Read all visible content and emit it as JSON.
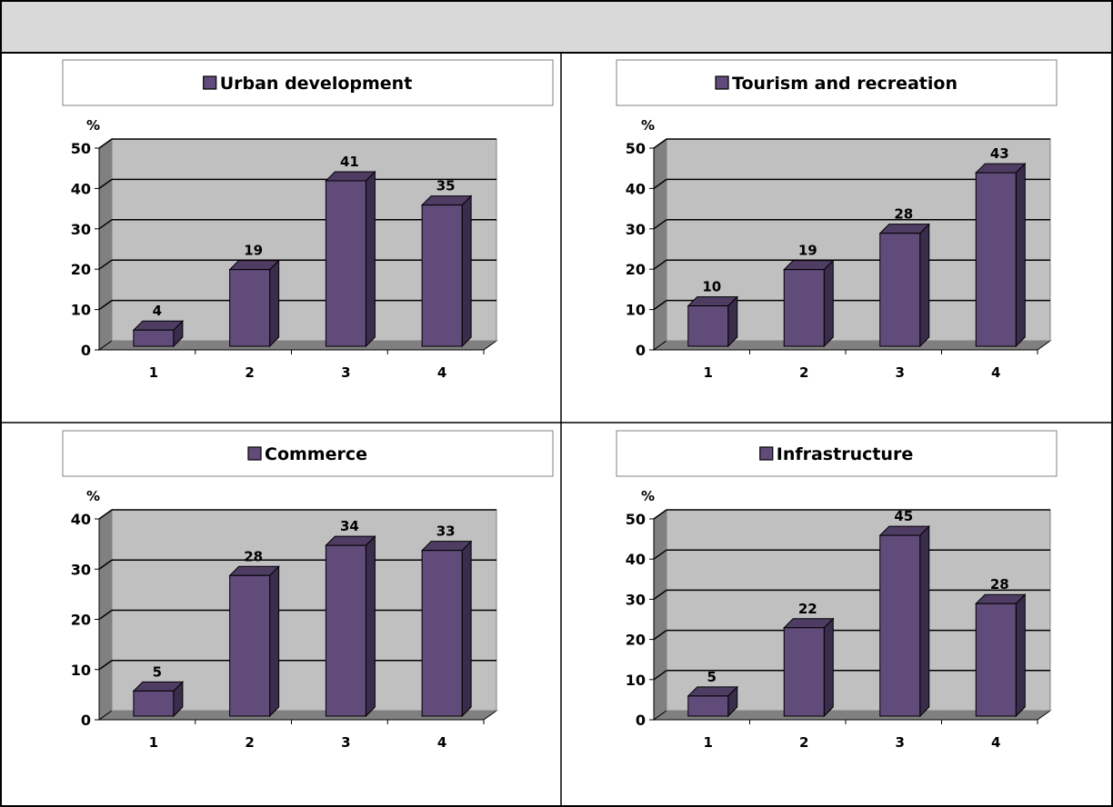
{
  "colors": {
    "bar_front": "#614b7a",
    "bar_top": "#4e3c63",
    "bar_side": "#3a2c4b",
    "plot_back": "#c0c0c0",
    "plot_wall": "#808080",
    "plot_floor": "#808080",
    "header_band": "#d9d9d9"
  },
  "chart_data": [
    {
      "type": "bar",
      "legend": "Urban development",
      "unit": "%",
      "categories": [
        "1",
        "2",
        "3",
        "4"
      ],
      "values": [
        4,
        19,
        41,
        35
      ],
      "data_labels": [
        "4",
        "19",
        "41",
        "35"
      ],
      "yticks": [
        "0",
        "10",
        "20",
        "30",
        "40",
        "50"
      ],
      "ylim": [
        0,
        50
      ],
      "grid": true,
      "legend_placement": "top"
    },
    {
      "type": "bar",
      "legend": "Tourism and recreation",
      "unit": "%",
      "categories": [
        "1",
        "2",
        "3",
        "4"
      ],
      "values": [
        10,
        19,
        28,
        43
      ],
      "data_labels": [
        "10",
        "19",
        "28",
        "43"
      ],
      "yticks": [
        "0",
        "10",
        "20",
        "30",
        "40",
        "50"
      ],
      "ylim": [
        0,
        50
      ],
      "grid": true,
      "legend_placement": "top"
    },
    {
      "type": "bar",
      "legend": "Commerce",
      "unit": "%",
      "categories": [
        "1",
        "2",
        "3",
        "4"
      ],
      "values": [
        5,
        28,
        34,
        33
      ],
      "data_labels": [
        "5",
        "28",
        "34",
        "33"
      ],
      "yticks": [
        "0",
        "10",
        "20",
        "30",
        "40"
      ],
      "ylim": [
        0,
        40
      ],
      "grid": true,
      "legend_placement": "top"
    },
    {
      "type": "bar",
      "legend": "Infrastructure",
      "unit": "%",
      "categories": [
        "1",
        "2",
        "3",
        "4"
      ],
      "values": [
        5,
        22,
        45,
        28
      ],
      "data_labels": [
        "5",
        "22",
        "45",
        "28"
      ],
      "yticks": [
        "0",
        "10",
        "20",
        "30",
        "40",
        "50"
      ],
      "ylim": [
        0,
        50
      ],
      "grid": true,
      "legend_placement": "top"
    }
  ]
}
